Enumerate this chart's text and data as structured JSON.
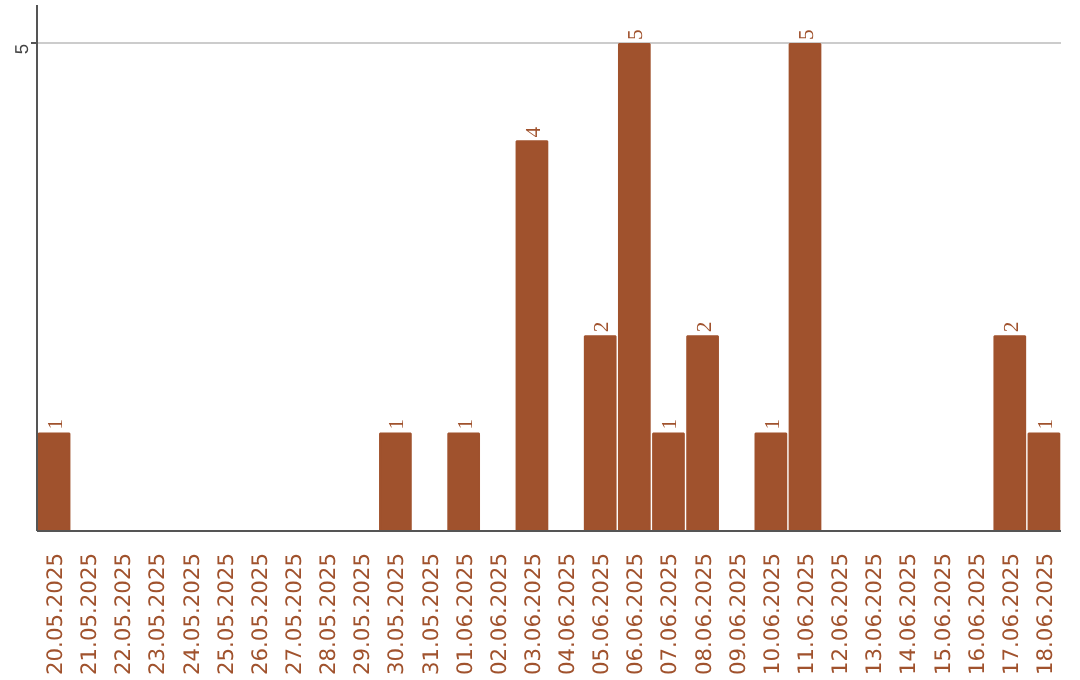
{
  "chart_data": {
    "type": "bar",
    "categories": [
      "20.05.2025",
      "21.05.2025",
      "22.05.2025",
      "23.05.2025",
      "24.05.2025",
      "25.05.2025",
      "26.05.2025",
      "27.05.2025",
      "28.05.2025",
      "29.05.2025",
      "30.05.2025",
      "31.05.2025",
      "01.06.2025",
      "02.06.2025",
      "03.06.2025",
      "04.06.2025",
      "05.06.2025",
      "06.06.2025",
      "07.06.2025",
      "08.06.2025",
      "09.06.2025",
      "10.06.2025",
      "11.06.2025",
      "12.06.2025",
      "13.06.2025",
      "14.06.2025",
      "15.06.2025",
      "16.06.2025",
      "17.06.2025",
      "18.06.2025"
    ],
    "values": [
      1,
      0,
      0,
      0,
      0,
      0,
      0,
      0,
      0,
      0,
      1,
      0,
      1,
      0,
      4,
      0,
      2,
      5,
      1,
      2,
      0,
      1,
      5,
      0,
      0,
      0,
      0,
      0,
      2,
      1
    ],
    "value_labels": [
      "1",
      null,
      null,
      null,
      null,
      null,
      null,
      null,
      null,
      null,
      "1",
      null,
      "1",
      null,
      "4",
      null,
      "2",
      "5",
      "1",
      "2",
      null,
      "1",
      "5",
      null,
      null,
      null,
      null,
      null,
      "2",
      "1"
    ],
    "color": "#a0522d",
    "ylim": [
      0,
      5.4
    ],
    "yticks": [
      5
    ],
    "grid": "y"
  }
}
